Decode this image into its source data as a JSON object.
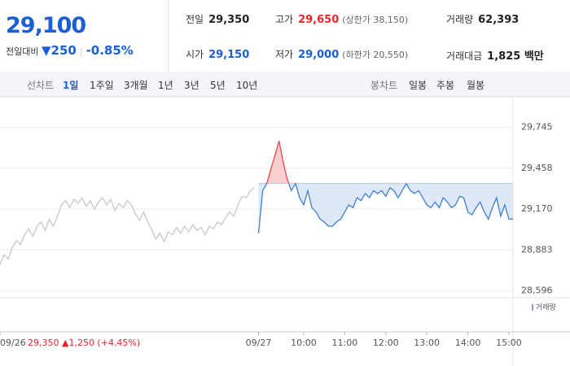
{
  "quote": {
    "price": "29,100",
    "change_label": "전일대비",
    "change": "▼250",
    "change_pct": "-0.85%"
  },
  "stats": [
    {
      "label": "전일",
      "value": "29,350"
    },
    {
      "label": "고가",
      "value": "29,650",
      "note": "(상한가 38,150)"
    },
    {
      "label": "거래량",
      "value": "62,393"
    },
    {
      "label": "시가",
      "value": "29,150"
    },
    {
      "label": "저가",
      "value": "29,000",
      "note": "(하한가 20,550)"
    },
    {
      "label": "거래대금",
      "value": "1,825 백만"
    }
  ],
  "tabs": {
    "line_label": "선차트",
    "line_items": [
      "1일",
      "1주일",
      "3개월",
      "1년",
      "3년",
      "5년",
      "10년"
    ],
    "candle_label": "봉차트",
    "candle_items": [
      "일봉",
      "주봉",
      "월봉"
    ]
  },
  "chart_data": {
    "type": "line",
    "baseline": 29350,
    "annotation": "29,350 ▲1,250 (+4.45%)",
    "volume_label": "거래량",
    "ylim": [
      28570,
      29840
    ],
    "yticks": [
      {
        "value": 29745,
        "label": "29,745"
      },
      {
        "value": 29458,
        "label": "29,458"
      },
      {
        "value": 29170,
        "label": "29,170"
      },
      {
        "value": 28883,
        "label": "28,883"
      },
      {
        "value": 28596,
        "label": "28,596"
      }
    ],
    "xlim": [
      0,
      125
    ],
    "xticks": [
      {
        "value": 0,
        "label": "09/26"
      },
      {
        "value": 63,
        "label": "09/27"
      },
      {
        "value": 74,
        "label": "10:00"
      },
      {
        "value": 84,
        "label": "11:00"
      },
      {
        "value": 94,
        "label": "12:00"
      },
      {
        "value": 104,
        "label": "13:00"
      },
      {
        "value": 114,
        "label": "14:00"
      },
      {
        "value": 124,
        "label": "15:00"
      }
    ],
    "series": [
      {
        "color": "#c8c8c8",
        "values": [
          28780,
          28850,
          28820,
          28900,
          28950,
          28920,
          28990,
          29030,
          28980,
          29050,
          29080,
          29020,
          29100,
          29050,
          29120,
          29200,
          29230,
          29180,
          29240,
          29210,
          29250,
          29190,
          29230,
          29170,
          29220,
          29250,
          29200,
          29240,
          29160,
          29210,
          29180,
          29230,
          29200,
          29140,
          29090,
          29150,
          29080,
          29020,
          28960,
          29000,
          28940,
          29010,
          28990,
          29040,
          29000,
          29050,
          29010,
          29060,
          29020,
          29040,
          28990,
          29050,
          29030,
          29080,
          29060,
          29110,
          29150,
          29120,
          29200,
          29260,
          29250,
          29300,
          29320,
          null,
          null,
          null,
          null,
          null,
          null,
          null,
          null,
          null,
          null,
          null,
          null,
          null,
          null,
          null,
          null,
          null,
          null,
          null,
          null,
          null,
          null,
          null,
          null,
          null,
          null,
          null,
          null,
          null,
          null,
          null,
          null,
          null,
          null,
          null,
          null,
          null,
          null,
          null,
          null,
          null,
          null,
          null,
          null,
          null,
          null,
          null,
          null,
          null,
          null,
          null,
          null,
          null,
          null,
          null,
          null,
          null,
          null,
          null,
          null,
          null,
          null,
          null
        ]
      },
      {
        "color": "#3d7fd6",
        "up_color": "#f04848",
        "values": [
          null,
          null,
          null,
          null,
          null,
          null,
          null,
          null,
          null,
          null,
          null,
          null,
          null,
          null,
          null,
          null,
          null,
          null,
          null,
          null,
          null,
          null,
          null,
          null,
          null,
          null,
          null,
          null,
          null,
          null,
          null,
          null,
          null,
          null,
          null,
          null,
          null,
          null,
          null,
          null,
          null,
          null,
          null,
          null,
          null,
          null,
          null,
          null,
          null,
          null,
          null,
          null,
          null,
          null,
          null,
          null,
          null,
          null,
          null,
          null,
          null,
          null,
          null,
          29000,
          29300,
          29350,
          29450,
          29550,
          29650,
          29500,
          29380,
          29300,
          29350,
          29250,
          29200,
          29300,
          29180,
          29150,
          29100,
          29080,
          29050,
          29050,
          29080,
          29100,
          29150,
          29200,
          29180,
          29250,
          29230,
          29280,
          29250,
          29300,
          29280,
          29300,
          29260,
          29320,
          29300,
          29250,
          29300,
          29350,
          29300,
          29280,
          29300,
          29250,
          29200,
          29180,
          29220,
          29180,
          29250,
          29220,
          29180,
          29200,
          29260,
          29250,
          29150,
          29130,
          29180,
          29220,
          29150,
          29100,
          29180,
          29250,
          29120,
          29200,
          29100,
          29100
        ]
      }
    ]
  }
}
